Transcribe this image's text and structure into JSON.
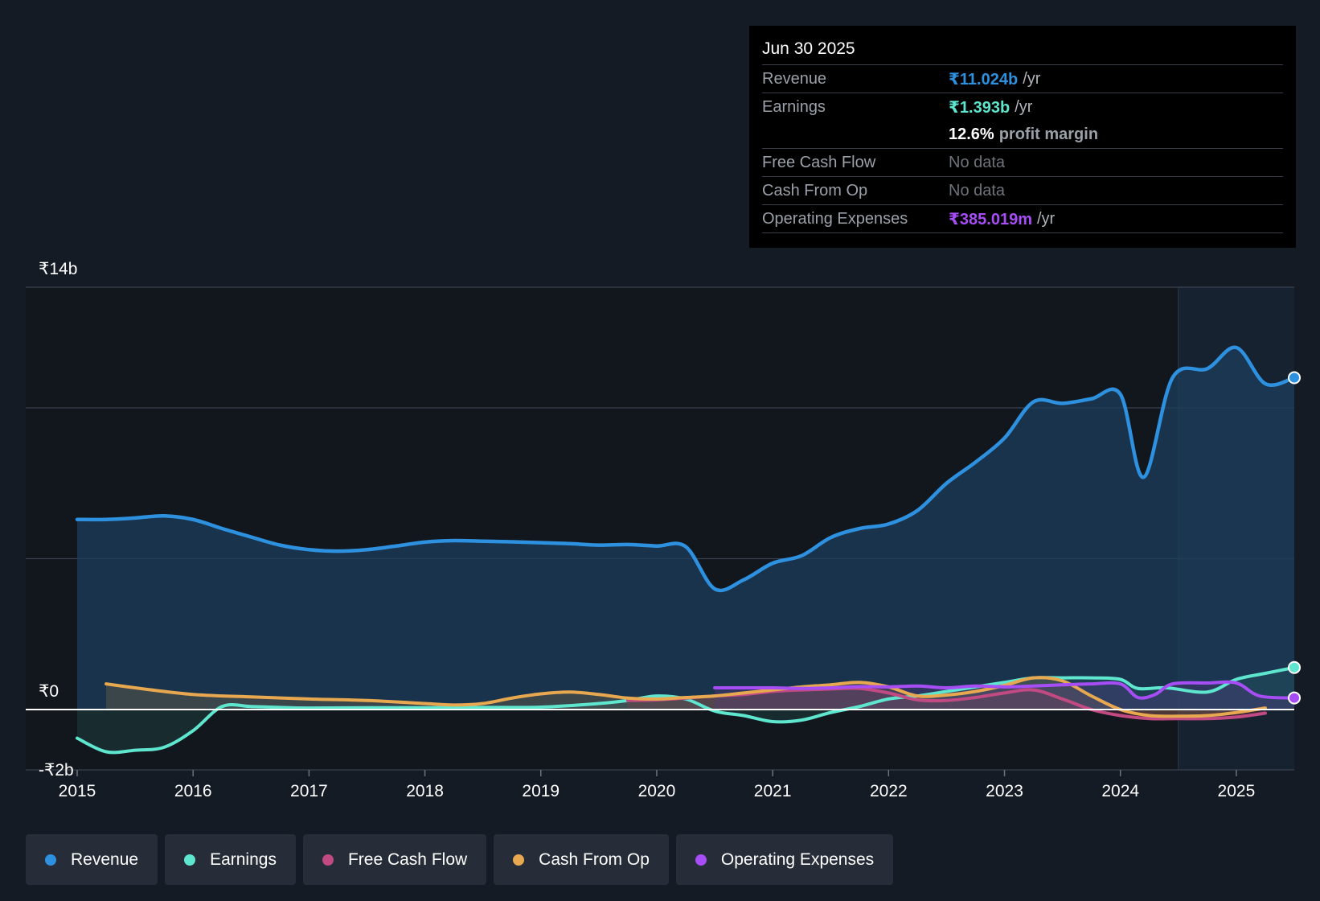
{
  "tooltip": {
    "date": "Jun 30 2025",
    "revenue": {
      "label": "Revenue",
      "value": "₹11.024b",
      "unit": "/yr"
    },
    "earnings": {
      "label": "Earnings",
      "value": "₹1.393b",
      "unit": "/yr"
    },
    "margin": {
      "value": "12.6%",
      "text": "profit margin"
    },
    "fcf": {
      "label": "Free Cash Flow",
      "value": "No data"
    },
    "cfo": {
      "label": "Cash From Op",
      "value": "No data"
    },
    "opex": {
      "label": "Operating Expenses",
      "value": "₹385.019m",
      "unit": "/yr"
    }
  },
  "legend": [
    {
      "label": "Revenue",
      "color": "#2d91e0"
    },
    {
      "label": "Earnings",
      "color": "#5ee6cf"
    },
    {
      "label": "Free Cash Flow",
      "color": "#c24a82"
    },
    {
      "label": "Cash From Op",
      "color": "#e8a84f"
    },
    {
      "label": "Operating Expenses",
      "color": "#a64df5"
    }
  ],
  "chart_data": {
    "type": "line",
    "title": "",
    "xlabel": "",
    "ylabel": "",
    "ylim": [
      -2,
      14
    ],
    "xlim": [
      2015,
      2025.5
    ],
    "y_tick_labels": [
      {
        "value": 14,
        "label": "₹14b"
      },
      {
        "value": 0,
        "label": "₹0"
      },
      {
        "value": -2,
        "label": "-₹2b"
      }
    ],
    "gridlines_at": [
      14,
      10,
      5,
      0
    ],
    "x_ticks": [
      2015,
      2016,
      2017,
      2018,
      2019,
      2020,
      2021,
      2022,
      2023,
      2024,
      2025
    ],
    "forecast_start": 2024.5,
    "series": [
      {
        "name": "Revenue",
        "color": "#2d91e0",
        "fill": true,
        "endpoint": true,
        "points": [
          [
            2015.0,
            6.3
          ],
          [
            2015.25,
            6.3
          ],
          [
            2015.5,
            6.35
          ],
          [
            2015.75,
            6.42
          ],
          [
            2016.0,
            6.3
          ],
          [
            2016.25,
            6.0
          ],
          [
            2016.5,
            5.72
          ],
          [
            2016.75,
            5.45
          ],
          [
            2017.0,
            5.3
          ],
          [
            2017.25,
            5.25
          ],
          [
            2017.5,
            5.3
          ],
          [
            2017.75,
            5.42
          ],
          [
            2018.0,
            5.55
          ],
          [
            2018.25,
            5.6
          ],
          [
            2018.5,
            5.58
          ],
          [
            2018.75,
            5.56
          ],
          [
            2019.0,
            5.53
          ],
          [
            2019.25,
            5.5
          ],
          [
            2019.5,
            5.45
          ],
          [
            2019.75,
            5.47
          ],
          [
            2020.0,
            5.42
          ],
          [
            2020.25,
            5.4
          ],
          [
            2020.5,
            4.0
          ],
          [
            2020.75,
            4.3
          ],
          [
            2021.0,
            4.85
          ],
          [
            2021.25,
            5.1
          ],
          [
            2021.5,
            5.7
          ],
          [
            2021.75,
            6.0
          ],
          [
            2022.0,
            6.15
          ],
          [
            2022.25,
            6.6
          ],
          [
            2022.5,
            7.5
          ],
          [
            2022.75,
            8.2
          ],
          [
            2023.0,
            9.0
          ],
          [
            2023.25,
            10.2
          ],
          [
            2023.5,
            10.15
          ],
          [
            2023.75,
            10.3
          ],
          [
            2024.0,
            10.45
          ],
          [
            2024.2,
            7.7
          ],
          [
            2024.45,
            11.0
          ],
          [
            2024.75,
            11.3
          ],
          [
            2025.0,
            12.0
          ],
          [
            2025.25,
            10.8
          ],
          [
            2025.5,
            11.0
          ]
        ]
      },
      {
        "name": "Earnings",
        "color": "#5ee6cf",
        "fill": true,
        "endpoint": true,
        "points": [
          [
            2015.0,
            -0.95
          ],
          [
            2015.25,
            -1.4
          ],
          [
            2015.5,
            -1.35
          ],
          [
            2015.75,
            -1.25
          ],
          [
            2016.0,
            -0.7
          ],
          [
            2016.25,
            0.1
          ],
          [
            2016.5,
            0.1
          ],
          [
            2016.75,
            0.07
          ],
          [
            2017.0,
            0.05
          ],
          [
            2017.5,
            0.06
          ],
          [
            2018.0,
            0.06
          ],
          [
            2018.5,
            0.07
          ],
          [
            2019.0,
            0.08
          ],
          [
            2019.5,
            0.2
          ],
          [
            2019.75,
            0.3
          ],
          [
            2020.0,
            0.45
          ],
          [
            2020.25,
            0.35
          ],
          [
            2020.5,
            -0.05
          ],
          [
            2020.75,
            -0.2
          ],
          [
            2021.0,
            -0.4
          ],
          [
            2021.25,
            -0.35
          ],
          [
            2021.5,
            -0.1
          ],
          [
            2021.75,
            0.1
          ],
          [
            2022.0,
            0.35
          ],
          [
            2022.25,
            0.45
          ],
          [
            2022.5,
            0.6
          ],
          [
            2022.75,
            0.75
          ],
          [
            2023.0,
            0.9
          ],
          [
            2023.25,
            1.05
          ],
          [
            2023.5,
            1.05
          ],
          [
            2023.75,
            1.05
          ],
          [
            2024.0,
            1.0
          ],
          [
            2024.15,
            0.7
          ],
          [
            2024.4,
            0.72
          ],
          [
            2024.75,
            0.58
          ],
          [
            2025.0,
            1.0
          ],
          [
            2025.25,
            1.2
          ],
          [
            2025.5,
            1.393
          ]
        ]
      },
      {
        "name": "Free Cash Flow",
        "color": "#c24a82",
        "fill": true,
        "endpoint": false,
        "points": [
          [
            2019.75,
            0.3
          ],
          [
            2020.0,
            0.32
          ],
          [
            2020.25,
            0.38
          ],
          [
            2020.5,
            0.45
          ],
          [
            2020.75,
            0.5
          ],
          [
            2021.0,
            0.6
          ],
          [
            2021.25,
            0.65
          ],
          [
            2021.5,
            0.68
          ],
          [
            2021.75,
            0.7
          ],
          [
            2022.0,
            0.55
          ],
          [
            2022.25,
            0.32
          ],
          [
            2022.5,
            0.3
          ],
          [
            2022.75,
            0.4
          ],
          [
            2023.0,
            0.55
          ],
          [
            2023.25,
            0.65
          ],
          [
            2023.5,
            0.35
          ],
          [
            2023.75,
            0.0
          ],
          [
            2024.0,
            -0.2
          ],
          [
            2024.25,
            -0.3
          ],
          [
            2024.5,
            -0.3
          ],
          [
            2024.75,
            -0.3
          ],
          [
            2025.0,
            -0.25
          ],
          [
            2025.25,
            -0.12
          ]
        ]
      },
      {
        "name": "Cash From Op",
        "color": "#e8a84f",
        "fill": true,
        "endpoint": false,
        "points": [
          [
            2015.25,
            0.85
          ],
          [
            2015.5,
            0.72
          ],
          [
            2015.75,
            0.6
          ],
          [
            2016.0,
            0.5
          ],
          [
            2016.25,
            0.45
          ],
          [
            2016.5,
            0.42
          ],
          [
            2017.0,
            0.35
          ],
          [
            2017.5,
            0.3
          ],
          [
            2018.0,
            0.2
          ],
          [
            2018.25,
            0.15
          ],
          [
            2018.5,
            0.2
          ],
          [
            2018.75,
            0.38
          ],
          [
            2019.0,
            0.52
          ],
          [
            2019.25,
            0.58
          ],
          [
            2019.5,
            0.5
          ],
          [
            2019.75,
            0.38
          ],
          [
            2020.0,
            0.35
          ],
          [
            2020.25,
            0.4
          ],
          [
            2020.5,
            0.45
          ],
          [
            2020.75,
            0.55
          ],
          [
            2021.0,
            0.65
          ],
          [
            2021.25,
            0.75
          ],
          [
            2021.5,
            0.82
          ],
          [
            2021.75,
            0.9
          ],
          [
            2022.0,
            0.75
          ],
          [
            2022.25,
            0.45
          ],
          [
            2022.5,
            0.48
          ],
          [
            2022.75,
            0.6
          ],
          [
            2023.0,
            0.8
          ],
          [
            2023.25,
            1.05
          ],
          [
            2023.5,
            0.95
          ],
          [
            2023.75,
            0.45
          ],
          [
            2024.0,
            0.0
          ],
          [
            2024.25,
            -0.2
          ],
          [
            2024.5,
            -0.22
          ],
          [
            2024.75,
            -0.2
          ],
          [
            2025.0,
            -0.1
          ],
          [
            2025.25,
            0.05
          ]
        ]
      },
      {
        "name": "Operating Expenses",
        "color": "#a64df5",
        "fill": true,
        "endpoint": true,
        "points": [
          [
            2020.5,
            0.72
          ],
          [
            2020.75,
            0.72
          ],
          [
            2021.0,
            0.72
          ],
          [
            2021.25,
            0.7
          ],
          [
            2021.5,
            0.72
          ],
          [
            2021.75,
            0.76
          ],
          [
            2022.0,
            0.75
          ],
          [
            2022.25,
            0.78
          ],
          [
            2022.5,
            0.72
          ],
          [
            2022.75,
            0.78
          ],
          [
            2023.0,
            0.75
          ],
          [
            2023.25,
            0.78
          ],
          [
            2023.5,
            0.82
          ],
          [
            2023.75,
            0.85
          ],
          [
            2024.0,
            0.85
          ],
          [
            2024.15,
            0.4
          ],
          [
            2024.3,
            0.5
          ],
          [
            2024.45,
            0.85
          ],
          [
            2024.75,
            0.88
          ],
          [
            2025.0,
            0.88
          ],
          [
            2025.2,
            0.45
          ],
          [
            2025.5,
            0.385
          ]
        ]
      }
    ]
  }
}
